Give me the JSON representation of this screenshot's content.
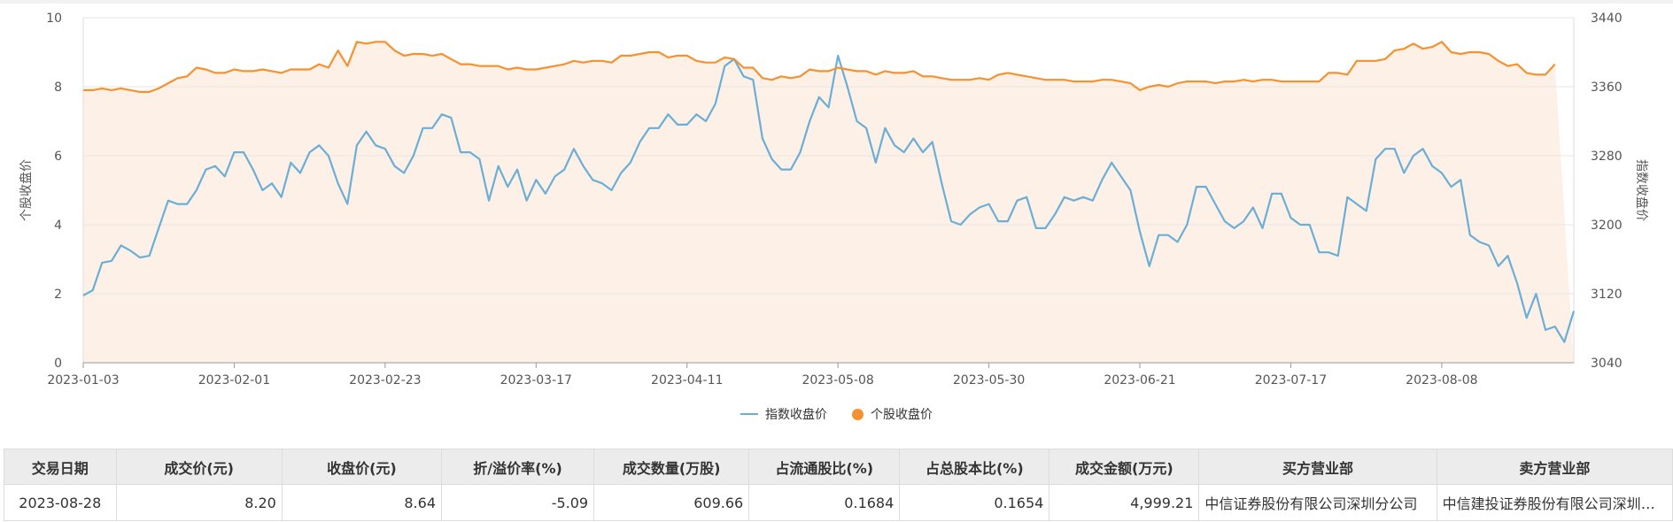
{
  "chart_data": {
    "type": "line",
    "x_ticks": [
      "2023-01-03",
      "2023-02-01",
      "2023-02-23",
      "2023-03-17",
      "2023-04-11",
      "2023-05-08",
      "2023-05-30",
      "2023-06-21",
      "2023-07-17",
      "2023-08-08"
    ],
    "y_left": {
      "label": "个股收盘价",
      "min": 0,
      "max": 10,
      "ticks": [
        "0",
        "2",
        "4",
        "6",
        "8",
        "10"
      ]
    },
    "y_right": {
      "label": "指数收盘价",
      "min": 3040,
      "max": 3440,
      "ticks": [
        "3040",
        "3120",
        "3200",
        "3280",
        "3360",
        "3440"
      ]
    },
    "grid": true,
    "legend_position": "bottom",
    "series": [
      {
        "name": "指数收盘价",
        "axis": "left",
        "color": "#6baed6",
        "values": [
          1.95,
          2.1,
          2.9,
          2.95,
          3.4,
          3.25,
          3.05,
          3.1,
          3.9,
          4.7,
          4.6,
          4.6,
          5.0,
          5.6,
          5.7,
          5.4,
          6.1,
          6.1,
          5.6,
          5.0,
          5.2,
          4.8,
          5.8,
          5.5,
          6.1,
          6.3,
          6.0,
          5.2,
          4.6,
          6.3,
          6.7,
          6.3,
          6.2,
          5.7,
          5.5,
          6.0,
          6.8,
          6.8,
          7.2,
          7.1,
          6.1,
          6.1,
          5.9,
          4.7,
          5.7,
          5.1,
          5.6,
          4.7,
          5.3,
          4.9,
          5.4,
          5.6,
          6.2,
          5.7,
          5.3,
          5.2,
          5.0,
          5.5,
          5.8,
          6.4,
          6.8,
          6.8,
          7.2,
          6.9,
          6.9,
          7.2,
          7.0,
          7.5,
          8.6,
          8.8,
          8.3,
          8.2,
          6.5,
          5.9,
          5.6,
          5.6,
          6.1,
          7.0,
          7.7,
          7.4,
          8.9,
          8.0,
          7.0,
          6.8,
          5.8,
          6.8,
          6.3,
          6.1,
          6.5,
          6.1,
          6.4,
          5.2,
          4.1,
          4.0,
          4.3,
          4.5,
          4.6,
          4.1,
          4.1,
          4.7,
          4.8,
          3.9,
          3.9,
          4.3,
          4.8,
          4.7,
          4.8,
          4.7,
          5.3,
          5.8,
          5.4,
          5.0,
          3.8,
          2.8,
          3.7,
          3.7,
          3.5,
          4.0,
          5.1,
          5.1,
          4.6,
          4.1,
          3.9,
          4.1,
          4.5,
          3.9,
          4.9,
          4.9,
          4.2,
          4.0,
          4.0,
          3.2,
          3.2,
          3.1,
          4.8,
          4.6,
          4.4,
          5.9,
          6.2,
          6.2,
          5.5,
          6.0,
          6.2,
          5.7,
          5.5,
          5.1,
          5.3,
          3.7,
          3.5,
          3.4,
          2.8,
          3.1,
          2.3,
          1.3,
          2.0,
          0.95,
          1.05,
          0.6,
          1.5
        ]
      },
      {
        "name": "个股收盘价",
        "axis": "left",
        "color": "#f5912e",
        "values": [
          7.9,
          7.9,
          7.95,
          7.9,
          7.95,
          7.9,
          7.85,
          7.85,
          7.95,
          8.1,
          8.25,
          8.3,
          8.55,
          8.5,
          8.4,
          8.4,
          8.5,
          8.45,
          8.45,
          8.5,
          8.45,
          8.4,
          8.5,
          8.5,
          8.5,
          8.65,
          8.55,
          9.05,
          8.6,
          9.3,
          9.25,
          9.3,
          9.3,
          9.05,
          8.9,
          8.95,
          8.95,
          8.9,
          8.95,
          8.8,
          8.65,
          8.65,
          8.6,
          8.6,
          8.6,
          8.5,
          8.55,
          8.5,
          8.5,
          8.55,
          8.6,
          8.65,
          8.75,
          8.7,
          8.75,
          8.75,
          8.7,
          8.9,
          8.9,
          8.95,
          9.0,
          9.0,
          8.85,
          8.9,
          8.9,
          8.75,
          8.7,
          8.7,
          8.85,
          8.8,
          8.55,
          8.55,
          8.25,
          8.2,
          8.3,
          8.25,
          8.3,
          8.5,
          8.45,
          8.45,
          8.55,
          8.5,
          8.45,
          8.45,
          8.35,
          8.45,
          8.4,
          8.4,
          8.45,
          8.3,
          8.3,
          8.25,
          8.2,
          8.2,
          8.2,
          8.25,
          8.2,
          8.35,
          8.4,
          8.35,
          8.3,
          8.25,
          8.2,
          8.2,
          8.2,
          8.15,
          8.15,
          8.15,
          8.2,
          8.2,
          8.15,
          8.1,
          7.9,
          8.0,
          8.05,
          8.0,
          8.1,
          8.15,
          8.15,
          8.15,
          8.1,
          8.15,
          8.15,
          8.2,
          8.15,
          8.2,
          8.2,
          8.15,
          8.15,
          8.15,
          8.15,
          8.15,
          8.4,
          8.4,
          8.35,
          8.75,
          8.75,
          8.75,
          8.8,
          9.05,
          9.1,
          9.25,
          9.1,
          9.15,
          9.3,
          9.0,
          8.95,
          9.0,
          9.0,
          8.95,
          8.75,
          8.6,
          8.65,
          8.4,
          8.35,
          8.35,
          8.65
        ]
      }
    ]
  },
  "legend": {
    "index_label": "指数收盘价",
    "stock_label": "个股收盘价"
  },
  "table": {
    "headers": [
      "交易日期",
      "成交价(元)",
      "收盘价(元)",
      "折/溢价率(%)",
      "成交数量(万股)",
      "占流通股比(%)",
      "占总股本比(%)",
      "成交金额(万元)",
      "买方营业部",
      "卖方营业部"
    ],
    "rows": [
      [
        "2023-08-28",
        "8.20",
        "8.64",
        "-5.09",
        "609.66",
        "0.1684",
        "0.1654",
        "4,999.21",
        "中信证券股份有限公司深圳分公司",
        "中信建投证券股份有限公司深圳分公司"
      ]
    ]
  },
  "colors": {
    "index_line": "#6baed6",
    "stock_line": "#f5912e",
    "area_fill": "#fdf0e6",
    "grid": "#e6e6e6"
  }
}
